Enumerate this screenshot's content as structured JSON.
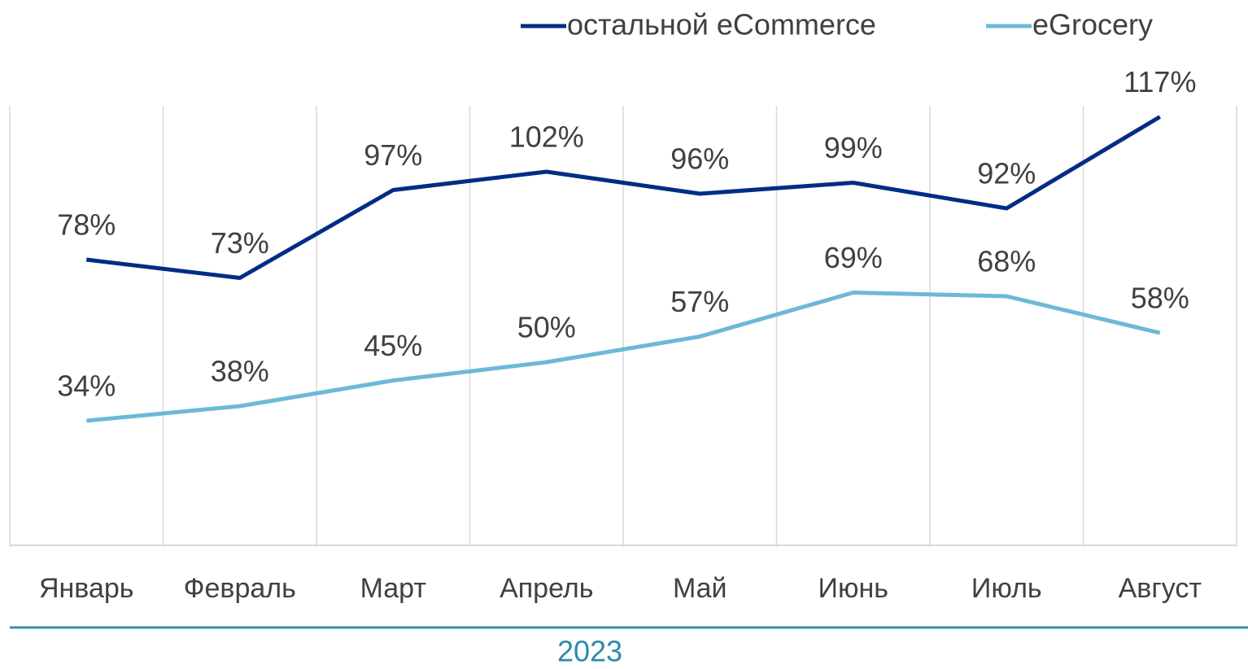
{
  "chart_data": {
    "type": "line",
    "categories": [
      "Январь",
      "Февраль",
      "Март",
      "Апрель",
      "Май",
      "Июнь",
      "Июль",
      "Август"
    ],
    "xlabel": "2023",
    "series": [
      {
        "name": "остальной eCommerce",
        "color": "#002d84",
        "values": [
          78,
          73,
          97,
          102,
          96,
          99,
          92,
          117
        ],
        "value_labels": [
          "78%",
          "73%",
          "97%",
          "102%",
          "96%",
          "99%",
          "92%",
          "117%"
        ]
      },
      {
        "name": "eGrocery",
        "color": "#6cb9d8",
        "values": [
          34,
          38,
          45,
          50,
          57,
          69,
          68,
          58
        ],
        "value_labels": [
          "34%",
          "38%",
          "45%",
          "50%",
          "57%",
          "69%",
          "68%",
          "58%"
        ]
      }
    ],
    "ylim": [
      0,
      120
    ],
    "grid": true,
    "legend": "top-right"
  }
}
